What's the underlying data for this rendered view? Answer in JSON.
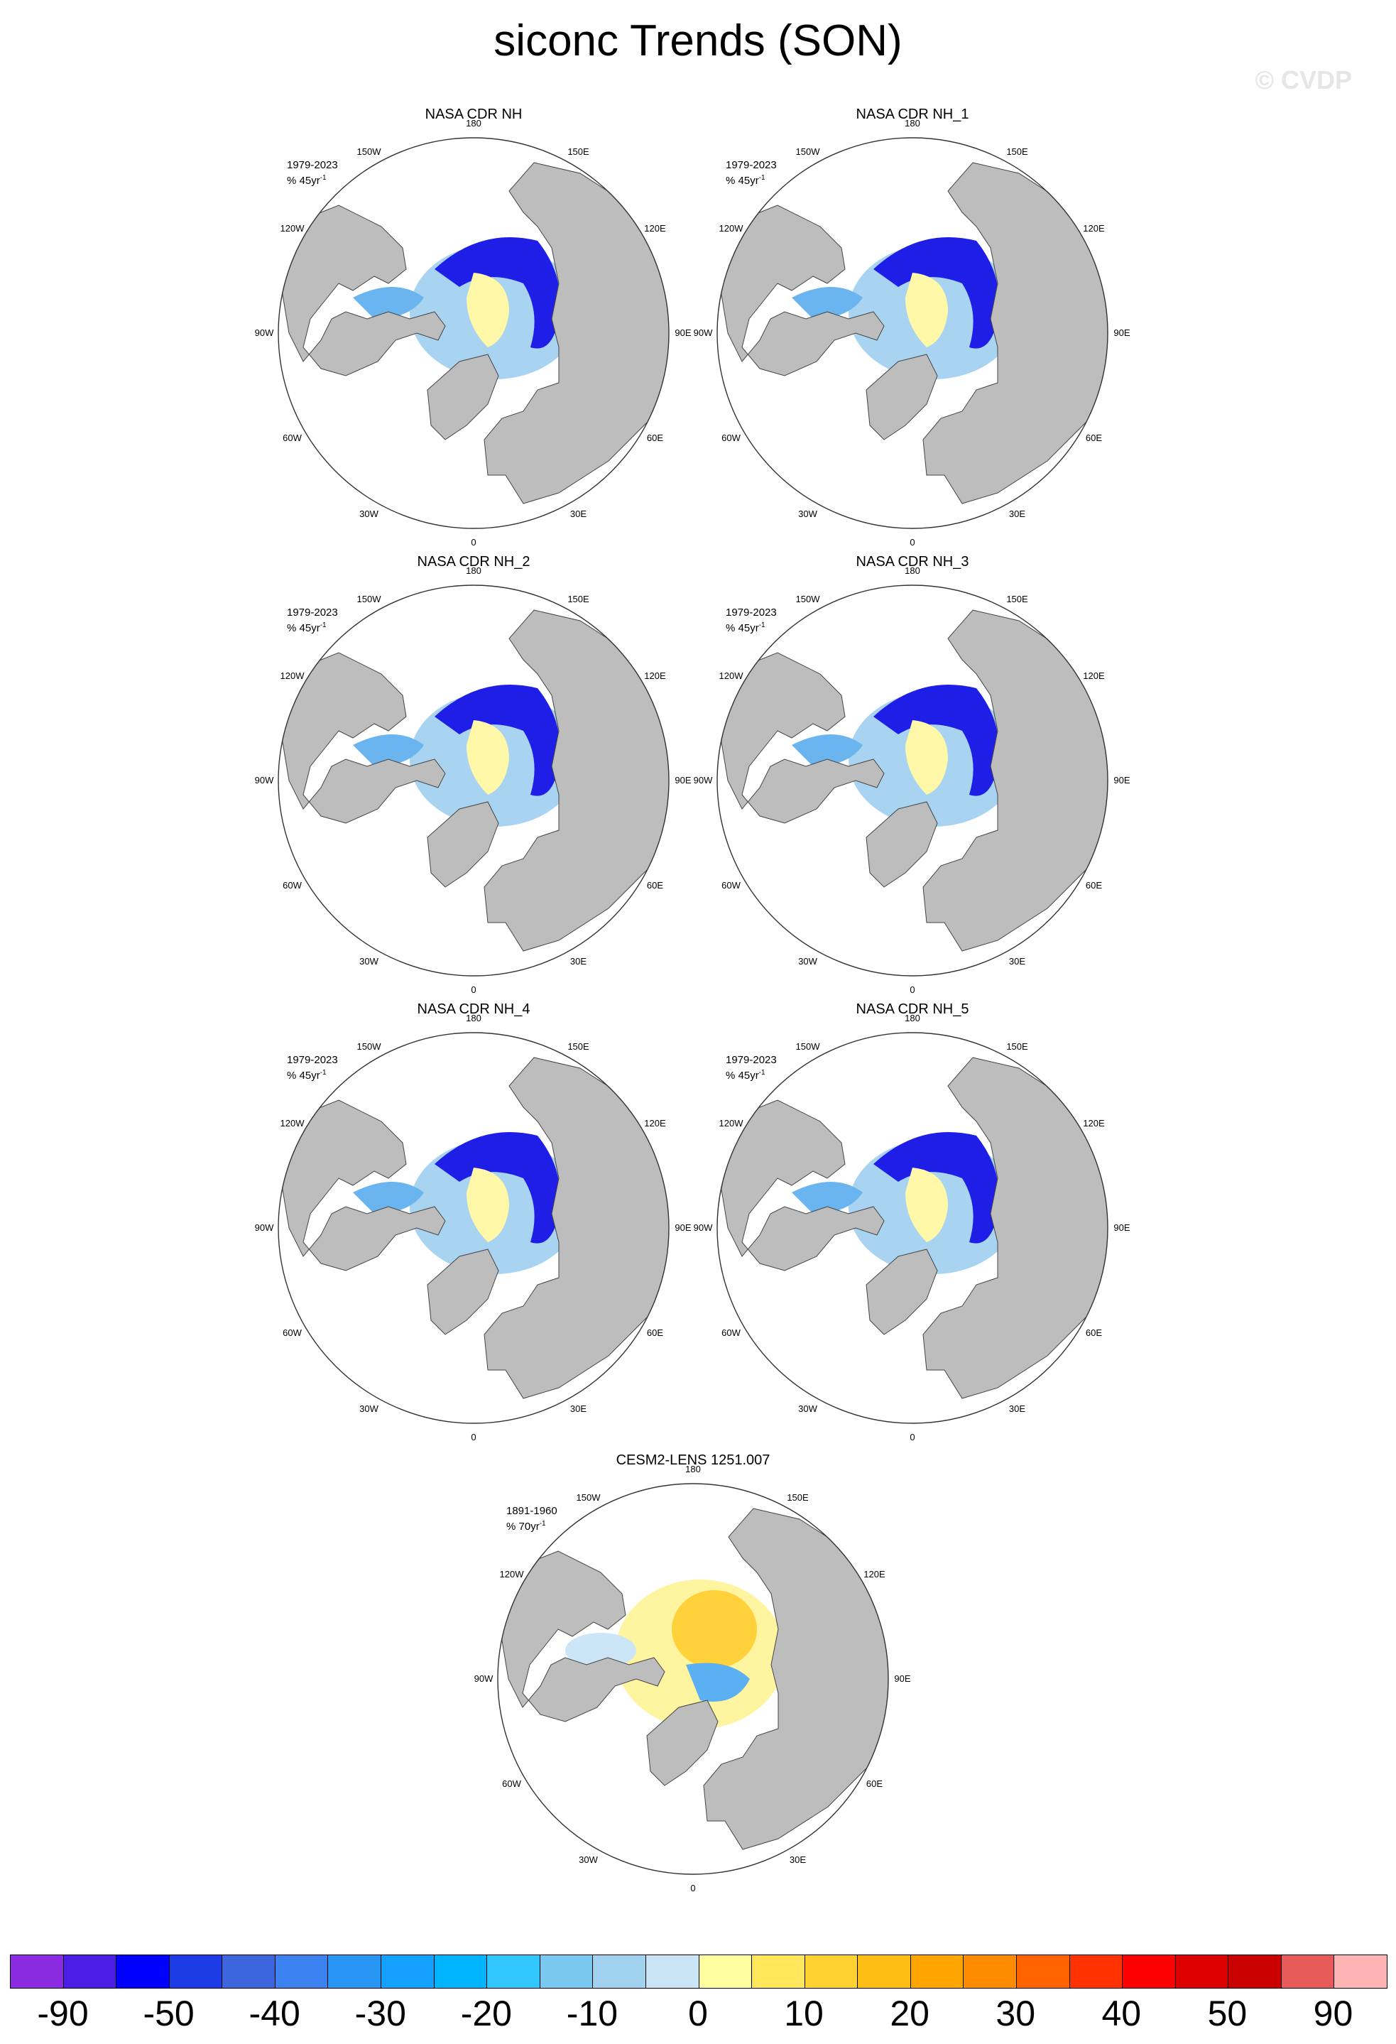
{
  "title": "siconc Trends (SON)",
  "watermark": "© CVDP",
  "panels": [
    {
      "name": "NASA CDR NH",
      "period": "1979-2023",
      "units": "% 45yr",
      "units_sup": "-1",
      "style": "obs"
    },
    {
      "name": "NASA CDR NH_1",
      "period": "1979-2023",
      "units": "% 45yr",
      "units_sup": "-1",
      "style": "obs"
    },
    {
      "name": "NASA CDR NH_2",
      "period": "1979-2023",
      "units": "% 45yr",
      "units_sup": "-1",
      "style": "obs"
    },
    {
      "name": "NASA CDR NH_3",
      "period": "1979-2023",
      "units": "% 45yr",
      "units_sup": "-1",
      "style": "obs"
    },
    {
      "name": "NASA CDR NH_4",
      "period": "1979-2023",
      "units": "% 45yr",
      "units_sup": "-1",
      "style": "obs"
    },
    {
      "name": "NASA CDR NH_5",
      "period": "1979-2023",
      "units": "% 45yr",
      "units_sup": "-1",
      "style": "obs"
    },
    {
      "name": "CESM2-LENS 1251.007",
      "period": "1891-1960",
      "units": "% 70yr",
      "units_sup": "-1",
      "style": "model"
    }
  ],
  "map_labels": [
    "180",
    "150E",
    "120E",
    "90E",
    "60E",
    "30E",
    "0",
    "30W",
    "60W",
    "90W",
    "120W",
    "150W"
  ],
  "colorbar": {
    "colors": [
      "#8a2be2",
      "#4b1ee6",
      "#0000ff",
      "#1e3ce6",
      "#3c64dc",
      "#3c82f0",
      "#2896f5",
      "#14a0ff",
      "#00b4ff",
      "#32c8ff",
      "#78c8f0",
      "#a0d2f0",
      "#c8e4f5",
      "#ffffa0",
      "#ffe65a",
      "#ffd232",
      "#ffbe14",
      "#ffa500",
      "#ff8c00",
      "#ff6400",
      "#ff3200",
      "#ff0000",
      "#dc0000",
      "#c80000",
      "#e65a5a",
      "#ffb4b4"
    ],
    "labels": [
      "-90",
      "-50",
      "-40",
      "-30",
      "-20",
      "-10",
      "0",
      "10",
      "20",
      "30",
      "40",
      "50",
      "90"
    ]
  }
}
